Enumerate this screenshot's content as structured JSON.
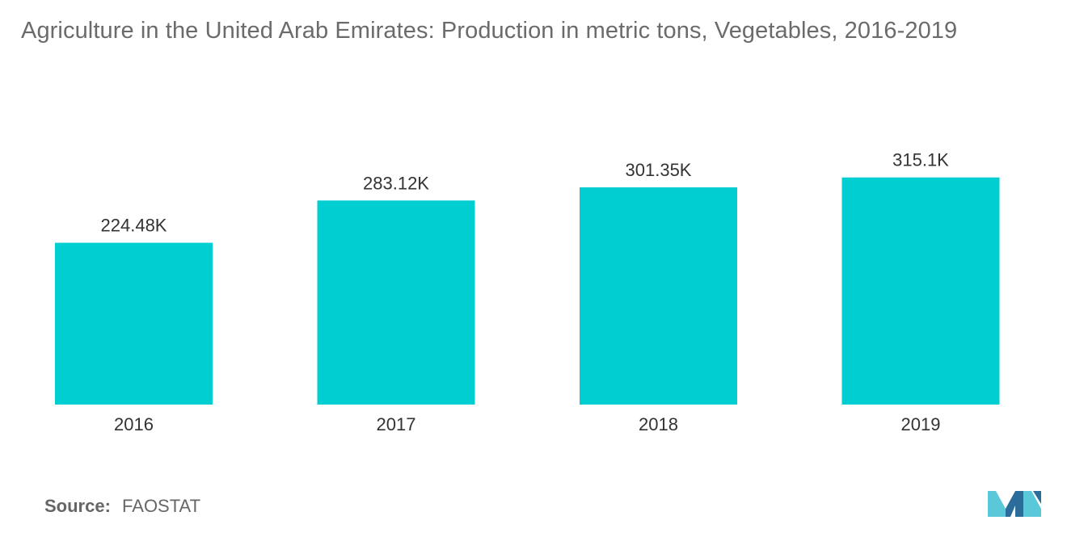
{
  "title": "Agriculture in the United Arab Emirates: Production in metric tons, Vegetables, 2016-2019",
  "source": {
    "label": "Source:",
    "value": "FAOSTAT"
  },
  "colors": {
    "bar": "#00CED1",
    "title": "#6b6b6b",
    "text": "#333333",
    "logo_light": "#5BC8D9",
    "logo_dark": "#2B6C9A"
  },
  "chart_data": {
    "type": "bar",
    "categories": [
      "2016",
      "2017",
      "2018",
      "2019"
    ],
    "values": [
      224480,
      283120,
      301350,
      315100
    ],
    "data_labels": [
      "224.48K",
      "283.12K",
      "301.35K",
      "315.1K"
    ],
    "title": "Agriculture in the United Arab Emirates: Production in metric tons, Vegetables, 2016-2019",
    "xlabel": "",
    "ylabel": "",
    "ylim": [
      0,
      540000
    ],
    "grid": false,
    "legend": "none"
  }
}
